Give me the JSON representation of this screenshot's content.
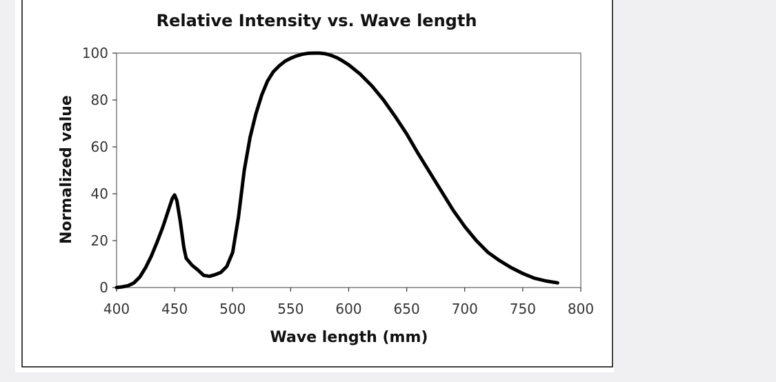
{
  "chart_data": {
    "type": "line",
    "title": "Relative Intensity vs. Wave length",
    "xlabel": "Wave length (mm)",
    "ylabel": "Normalized value",
    "xlim": [
      400,
      800
    ],
    "ylim": [
      0,
      100
    ],
    "x_ticks": [
      "400",
      "450",
      "500",
      "550",
      "600",
      "650",
      "700",
      "750",
      "800"
    ],
    "y_ticks": [
      "0",
      "20",
      "40",
      "60",
      "80",
      "100"
    ],
    "grid": false,
    "legend": "none",
    "series_color": "#000000",
    "series": [
      {
        "x": [
          400,
          405,
          410,
          415,
          420,
          425,
          430,
          435,
          440,
          445,
          448,
          450,
          452,
          455,
          458,
          460,
          465,
          470,
          475,
          480,
          485,
          490,
          495,
          500,
          505,
          510,
          515,
          520,
          525,
          530,
          535,
          540,
          545,
          550,
          555,
          560,
          565,
          570,
          575,
          580,
          585,
          590,
          595,
          600,
          610,
          620,
          630,
          640,
          650,
          660,
          670,
          680,
          690,
          700,
          710,
          720,
          730,
          740,
          750,
          760,
          770,
          780
        ],
        "y": [
          0,
          0.3,
          0.8,
          2,
          4.5,
          8.5,
          13.5,
          19.5,
          26,
          33.5,
          38,
          39.5,
          37,
          28,
          17,
          12.5,
          9.5,
          7.5,
          5.2,
          4.8,
          5.5,
          6.5,
          9,
          15,
          30,
          50,
          64,
          74,
          82,
          88,
          92,
          94.5,
          96.5,
          97.8,
          98.8,
          99.5,
          99.9,
          100,
          100,
          99.7,
          99,
          98,
          96.6,
          95,
          91,
          86,
          80,
          73,
          65.5,
          57,
          49,
          41,
          33,
          26,
          20,
          15,
          11.5,
          8.5,
          6,
          4,
          2.8,
          2
        ]
      }
    ]
  }
}
